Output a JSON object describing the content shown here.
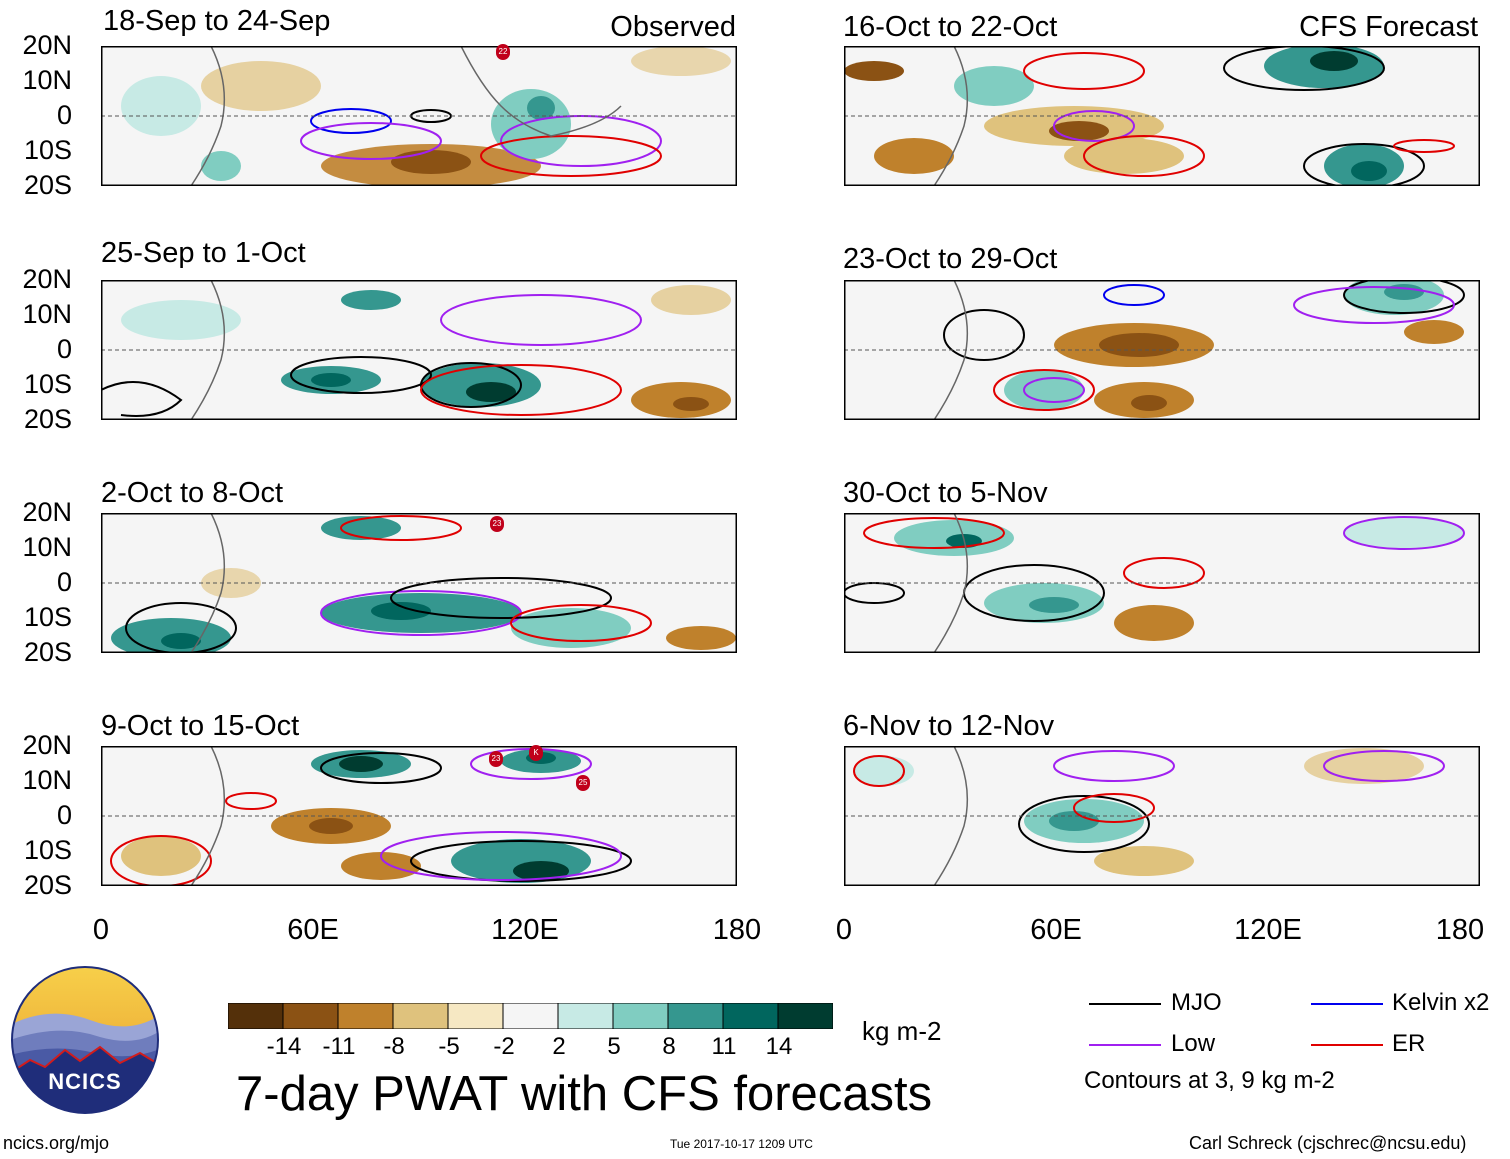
{
  "header": {
    "observed_label": "Observed",
    "forecast_label": "CFS Forecast"
  },
  "axes": {
    "lat_labels": [
      "20N",
      "10N",
      "0",
      "10S",
      "20S"
    ],
    "lon_labels": [
      "0",
      "60E",
      "120E",
      "180"
    ]
  },
  "panels": {
    "observed": [
      {
        "title": "18-Sep to 24-Sep"
      },
      {
        "title": "25-Sep to 1-Oct"
      },
      {
        "title": "2-Oct to 8-Oct"
      },
      {
        "title": "9-Oct to 15-Oct"
      }
    ],
    "forecast": [
      {
        "title": "16-Oct to 22-Oct"
      },
      {
        "title": "23-Oct to 29-Oct"
      },
      {
        "title": "30-Oct to 5-Nov"
      },
      {
        "title": "6-Nov to 12-Nov"
      }
    ]
  },
  "storm_markers": {
    "p1": [
      "22"
    ],
    "p3": [
      "23"
    ],
    "p4": [
      "23",
      "K",
      "25"
    ]
  },
  "colorbar": {
    "unit": "kg m-2",
    "ticks": [
      "-14",
      "-11",
      "-8",
      "-5",
      "-2",
      "2",
      "5",
      "8",
      "11",
      "14"
    ],
    "colors": [
      "#54300a",
      "#8b5214",
      "#bf812c",
      "#dfc27d",
      "#f6e8c3",
      "#f5f5f5",
      "#c7eae5",
      "#80cdc1",
      "#35978f",
      "#01665e",
      "#003c30"
    ]
  },
  "footer": {
    "logo_text": "NCICS",
    "main_title": "7-day PWAT with CFS forecasts",
    "url": "ncics.org/mjo",
    "timestamp": "Tue 2017-10-17 1209 UTC",
    "author": "Carl Schreck (cjschrec@ncsu.edu)"
  },
  "legend": {
    "items": [
      {
        "label": "MJO",
        "color": "#000000"
      },
      {
        "label": "Kelvin x2",
        "color": "#0000ee"
      },
      {
        "label": "Low",
        "color": "#a020f0"
      },
      {
        "label": "ER",
        "color": "#e00000"
      }
    ],
    "note": "Contours at 3, 9 kg m-2"
  }
}
